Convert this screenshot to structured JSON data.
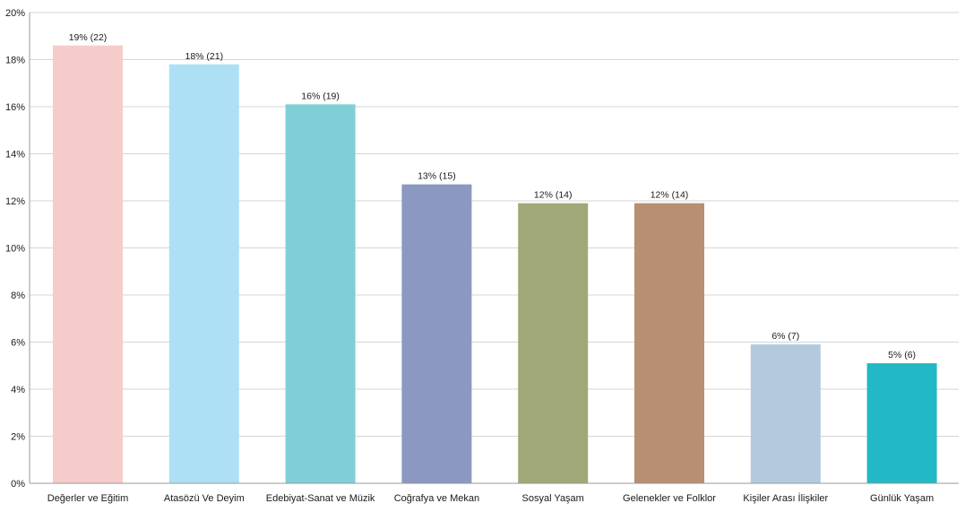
{
  "chart_data": {
    "type": "bar",
    "title": "",
    "xlabel": "",
    "ylabel": "",
    "ylim": [
      0,
      20
    ],
    "y_ticks": [
      "0%",
      "2%",
      "4%",
      "6%",
      "8%",
      "10%",
      "12%",
      "14%",
      "16%",
      "18%",
      "20%"
    ],
    "y_tick_values": [
      0,
      2,
      4,
      6,
      8,
      10,
      12,
      14,
      16,
      18,
      20
    ],
    "grid": true,
    "legend": "none",
    "categories": [
      "Değerler ve Eğitim",
      "Atasözü Ve Deyim",
      "Edebiyat-Sanat ve Müzik",
      "Coğrafya ve Mekan",
      "Sosyal Yaşam",
      "Gelenekler ve Folklor",
      "Kişiler Arası İlişkiler",
      "Günlük Yaşam"
    ],
    "values": [
      18.6,
      17.8,
      16.1,
      12.7,
      11.9,
      11.9,
      5.9,
      5.1
    ],
    "data_labels": [
      "19% (22)",
      "18% (21)",
      "16% (19)",
      "13% (15)",
      "12% (14)",
      "12% (14)",
      "6% (7)",
      "5% (6)"
    ],
    "colors": [
      "#f6cccb",
      "#aee0f5",
      "#80cfd6",
      "#8b98c1",
      "#a1a877",
      "#b78f72",
      "#b3c9de",
      "#22b8c5"
    ]
  }
}
